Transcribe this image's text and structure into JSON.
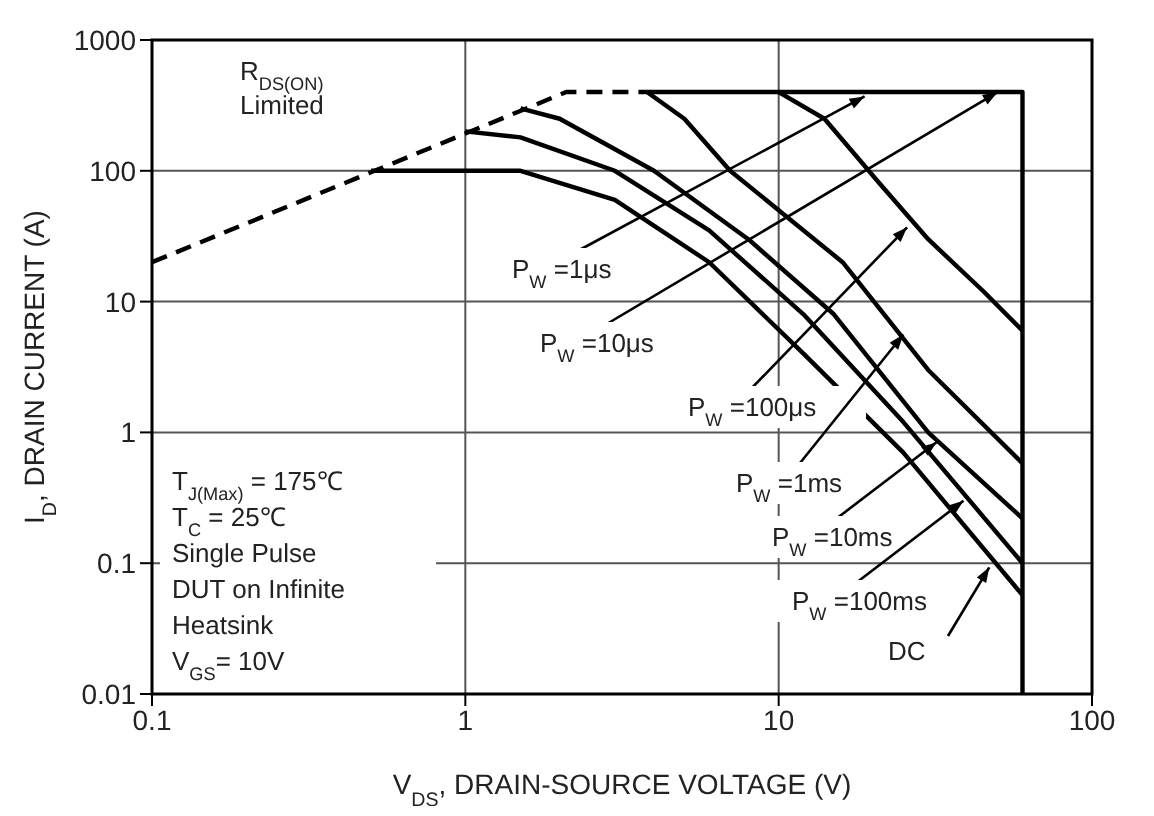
{
  "chart_data": {
    "type": "line",
    "xlabel": "V$_{DS}$, DRAIN-SOURCE VOLTAGE (V)",
    "ylabel": "I$_{D}$, DRAIN CURRENT (A)",
    "log": "xy",
    "grid": true,
    "marker": "none",
    "line_style": "solid",
    "xlim": [
      0.1,
      100
    ],
    "xticks": [
      0.1,
      1,
      10,
      100
    ],
    "ylim": [
      0.01,
      1000
    ],
    "yticks": [
      0.01,
      0.1,
      1,
      10,
      100,
      1000
    ],
    "series": [
      {
        "color": "#000000",
        "line_style": "dashed",
        "x": [
          0.1,
          2.1,
          3.8
        ],
        "values": [
          20,
          400,
          400
        ]
      },
      {
        "color": "#000000",
        "x": [
          3.8,
          60,
          60
        ],
        "values": [
          400,
          400,
          0.01
        ]
      },
      {
        "color": "#000000",
        "x": [
          10,
          14,
          21,
          30,
          45,
          60
        ],
        "values": [
          400,
          250,
          80,
          30,
          12,
          6
        ]
      },
      {
        "color": "#000000",
        "x": [
          3.8,
          5,
          7,
          10,
          16,
          30,
          60
        ],
        "values": [
          400,
          250,
          100,
          50,
          20,
          3,
          0.58
        ]
      },
      {
        "color": "#000000",
        "x": [
          1.5,
          2,
          4,
          8,
          15,
          30,
          60
        ],
        "values": [
          300,
          250,
          100,
          30,
          8,
          1,
          0.22
        ]
      },
      {
        "color": "#000000",
        "x": [
          1,
          1.5,
          3,
          6,
          12,
          25,
          60
        ],
        "values": [
          200,
          180,
          100,
          35,
          8,
          1.2,
          0.1
        ]
      },
      {
        "color": "#000000",
        "x": [
          0.5,
          1.5,
          3,
          6,
          12,
          25,
          60
        ],
        "values": [
          100,
          100,
          60,
          20,
          4,
          0.7,
          0.057
        ]
      }
    ],
    "annotations": [
      "R$_{DS(ON)}$",
      "Limited",
      "T$_{J(Max)}$ = 175℃",
      "T$_{C}$ = 25℃",
      "Single Pulse",
      "DUT on Infinite",
      "Heatsink",
      "V$_{GS}$= 10V",
      {
        "text": "P$_{W}$ =1μs",
        "x": 18.8,
        "y": 370
      },
      {
        "text": "P$_{W}$ =10μs",
        "x": 50,
        "y": 400
      },
      {
        "text": "P$_{W}$ =100μs",
        "x": 25.7,
        "y": 37
      },
      {
        "text": "P$_{W}$ =1ms",
        "x": 25,
        "y": 5.6
      },
      {
        "text": "P$_{W}$ =10ms",
        "x": 31.9,
        "y": 0.84
      },
      {
        "text": "P$_{W}$ =100ms",
        "x": 38.9,
        "y": 0.3
      },
      {
        "text": "DC",
        "x": 47,
        "y": 0.093
      }
    ]
  }
}
